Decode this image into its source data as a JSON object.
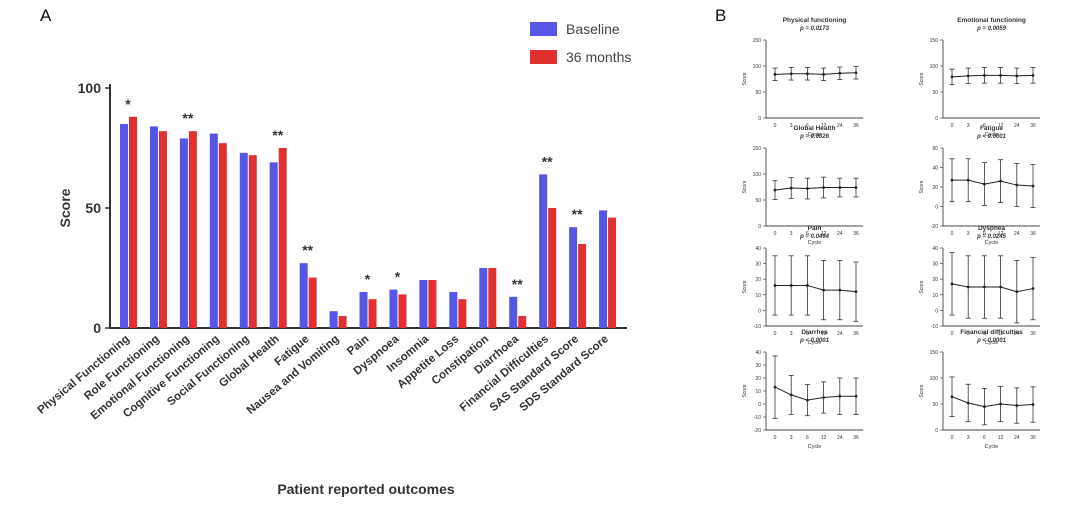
{
  "panels": {
    "a": "A",
    "b": "B"
  },
  "colors": {
    "baseline": "#5555e6",
    "month36": "#e03030",
    "axis": "#333333"
  },
  "chart_data": [
    {
      "type": "bar",
      "title": "",
      "xlabel": "Patient reported outcomes",
      "ylabel": "Score",
      "ylim": [
        0,
        100
      ],
      "yticks": [
        0,
        50,
        100
      ],
      "categories": [
        "Physical Functioning",
        "Role Functioning",
        "Emotional Functioning",
        "Cognitive Functioning",
        "Social Functioning",
        "Global Health",
        "Fatigue",
        "Nausea and Vomiting",
        "Pain",
        "Dyspnoea",
        "Insomnia",
        "Appetite Loss",
        "Constipation",
        "Diarrhoea",
        "Financial Difficulties",
        "SAS Standard Score",
        "SDS Standard Score"
      ],
      "series": [
        {
          "name": "Baseline",
          "values": [
            85,
            84,
            79,
            81,
            73,
            69,
            27,
            7,
            15,
            16,
            20,
            15,
            25,
            13,
            64,
            42,
            49
          ]
        },
        {
          "name": "36 months",
          "values": [
            88,
            82,
            82,
            77,
            72,
            75,
            21,
            5,
            12,
            14,
            20,
            12,
            25,
            5,
            50,
            35,
            46
          ]
        }
      ],
      "significance": [
        "*",
        "",
        "**",
        "",
        "",
        "**",
        "**",
        "",
        "*",
        "*",
        "",
        "",
        "",
        "**",
        "**",
        "**",
        ""
      ],
      "legend": "top-right"
    },
    {
      "type": "line",
      "xlabel": "Cycle",
      "ylabel": "Score",
      "x": [
        0,
        3,
        6,
        12,
        24,
        36
      ],
      "subplots": [
        {
          "title": "Physical functioning",
          "pvalue": "p = 0.0173",
          "ylim": [
            0,
            150
          ],
          "yticks": [
            0,
            50,
            100,
            150
          ],
          "values": [
            84,
            85,
            85,
            84,
            86,
            87
          ],
          "errors": [
            12,
            12,
            12,
            12,
            12,
            12
          ]
        },
        {
          "title": "Emotional functioning",
          "pvalue": "p = 0.0059",
          "ylim": [
            0,
            150
          ],
          "yticks": [
            0,
            50,
            100,
            150
          ],
          "values": [
            79,
            81,
            82,
            82,
            81,
            82
          ],
          "errors": [
            15,
            15,
            15,
            15,
            15,
            15
          ]
        },
        {
          "title": "Global Health",
          "pvalue": "p = 0.0026",
          "ylim": [
            0,
            150
          ],
          "yticks": [
            0,
            50,
            100,
            150
          ],
          "values": [
            69,
            73,
            72,
            74,
            74,
            74
          ],
          "errors": [
            18,
            20,
            20,
            20,
            18,
            18
          ]
        },
        {
          "title": "Fatigue",
          "pvalue": "p < 0.0001",
          "ylim": [
            -20,
            60
          ],
          "yticks": [
            -20,
            0,
            20,
            40,
            60
          ],
          "values": [
            27,
            27,
            23,
            26,
            22,
            21
          ],
          "errors": [
            22,
            22,
            22,
            22,
            22,
            22
          ]
        },
        {
          "title": "Pain",
          "pvalue": "p = 0.0464",
          "ylim": [
            -10,
            40
          ],
          "yticks": [
            -10,
            0,
            10,
            20,
            30,
            40
          ],
          "values": [
            16,
            16,
            16,
            13,
            13,
            12
          ],
          "errors": [
            19,
            19,
            19,
            19,
            19,
            19
          ]
        },
        {
          "title": "Dyspnea",
          "pvalue": "p = 0.0245",
          "ylim": [
            -10,
            40
          ],
          "yticks": [
            -10,
            0,
            10,
            20,
            30,
            40
          ],
          "values": [
            17,
            15,
            15,
            15,
            12,
            14
          ],
          "errors": [
            20,
            20,
            20,
            20,
            20,
            20
          ]
        },
        {
          "title": "Diarrhea",
          "pvalue": "p < 0.0001",
          "ylim": [
            -20,
            40
          ],
          "yticks": [
            -20,
            -10,
            0,
            10,
            20,
            30,
            40
          ],
          "values": [
            13,
            7,
            3,
            5,
            6,
            6
          ],
          "errors": [
            24,
            15,
            12,
            12,
            14,
            14
          ]
        },
        {
          "title": "Financial difficulties",
          "pvalue": "p < 0.0001",
          "ylim": [
            0,
            150
          ],
          "yticks": [
            0,
            50,
            100,
            150
          ],
          "values": [
            64,
            52,
            45,
            50,
            47,
            49
          ],
          "errors": [
            38,
            36,
            35,
            34,
            34,
            34
          ]
        }
      ]
    }
  ]
}
